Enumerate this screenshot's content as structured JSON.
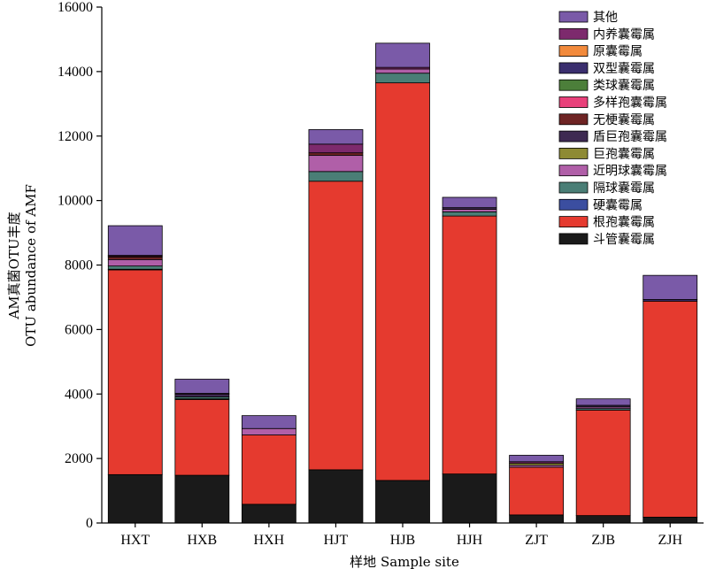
{
  "chart_data": {
    "type": "bar",
    "stacked": true,
    "title": "",
    "xlabel": "样地  Sample site",
    "ylabel_line1": "AM真菌OTU丰度",
    "ylabel_line2": "OTU abundance of AMF",
    "ylim": [
      0,
      16000
    ],
    "yticks": [
      0,
      2000,
      4000,
      6000,
      8000,
      10000,
      12000,
      14000,
      16000
    ],
    "grid": false,
    "legend_position": "top-right",
    "categories": [
      "HXT",
      "HXB",
      "HXH",
      "HJT",
      "HJB",
      "HJH",
      "ZJT",
      "ZJB",
      "ZJH"
    ],
    "series": [
      {
        "name": "斗管囊霉属",
        "color": "#1a1a1a",
        "values": [
          1500,
          1480,
          580,
          1650,
          1320,
          1520,
          250,
          230,
          180
        ]
      },
      {
        "name": "根孢囊霉属",
        "color": "#e53a2f",
        "values": [
          6350,
          2350,
          2150,
          8950,
          12330,
          8000,
          1480,
          3270,
          6700
        ]
      },
      {
        "name": "硬囊霉属",
        "color": "#3b4ea0",
        "values": [
          20,
          20,
          0,
          0,
          0,
          0,
          0,
          0,
          0
        ]
      },
      {
        "name": "隔球囊霉属",
        "color": "#4a7e76",
        "values": [
          100,
          60,
          0,
          300,
          300,
          130,
          0,
          50,
          0
        ]
      },
      {
        "name": "近明球囊霉属",
        "color": "#b05fa8",
        "values": [
          200,
          0,
          200,
          500,
          130,
          80,
          60,
          50,
          0
        ]
      },
      {
        "name": "巨孢囊霉属",
        "color": "#8e8a34",
        "values": [
          0,
          0,
          0,
          0,
          0,
          0,
          60,
          0,
          0
        ]
      },
      {
        "name": "盾巨孢囊霉属",
        "color": "#3e2a52",
        "values": [
          0,
          80,
          0,
          0,
          0,
          50,
          0,
          50,
          0
        ]
      },
      {
        "name": "无梗囊霉属",
        "color": "#6e2424",
        "values": [
          80,
          0,
          0,
          80,
          0,
          0,
          0,
          0,
          0
        ]
      },
      {
        "name": "多样孢囊霉属",
        "color": "#e8407a",
        "values": [
          30,
          0,
          0,
          0,
          0,
          0,
          0,
          0,
          0
        ]
      },
      {
        "name": "类球囊霉属",
        "color": "#4c7f3a",
        "values": [
          0,
          0,
          0,
          0,
          0,
          0,
          0,
          0,
          0
        ]
      },
      {
        "name": "双型囊霉属",
        "color": "#3a2e6e",
        "values": [
          0,
          0,
          0,
          0,
          0,
          0,
          0,
          0,
          50
        ]
      },
      {
        "name": "原囊霉属",
        "color": "#f28a3c",
        "values": [
          0,
          0,
          0,
          0,
          0,
          0,
          0,
          0,
          0
        ]
      },
      {
        "name": "内养囊霉属",
        "color": "#7d2a6d",
        "values": [
          20,
          30,
          0,
          270,
          50,
          0,
          50,
          0,
          0
        ]
      },
      {
        "name": "其他",
        "color": "#7a5aa8",
        "values": [
          920,
          440,
          400,
          450,
          750,
          320,
          200,
          200,
          750
        ]
      }
    ]
  }
}
